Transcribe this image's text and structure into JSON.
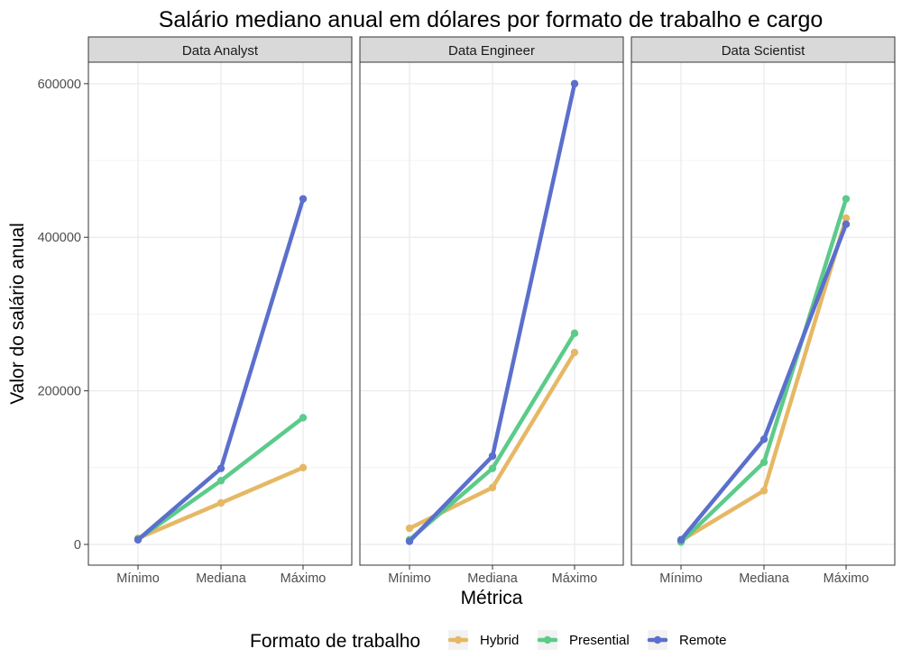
{
  "chart_data": {
    "type": "line",
    "title": "Salário mediano anual em dólares por formato de trabalho e cargo",
    "xlabel": "Métrica",
    "ylabel": "Valor do salário anual",
    "categories": [
      "Mínimo",
      "Mediana",
      "Máximo"
    ],
    "ylim": [
      -27000,
      628000
    ],
    "yticks": [
      0,
      200000,
      400000,
      600000
    ],
    "ytick_labels": [
      "0",
      "200000",
      "400000",
      "600000"
    ],
    "grid": true,
    "legend": {
      "title": "Formato de trabalho",
      "position": "bottom",
      "entries": [
        "Hybrid",
        "Presential",
        "Remote"
      ]
    },
    "colors": {
      "Hybrid": "#E6B865",
      "Presential": "#5CCB8A",
      "Remote": "#5B6FCC"
    },
    "panels": [
      {
        "name": "Data Analyst",
        "series": [
          {
            "name": "Hybrid",
            "values": [
              8000,
              54000,
              100000
            ]
          },
          {
            "name": "Presential",
            "values": [
              7000,
              83000,
              165000
            ]
          },
          {
            "name": "Remote",
            "values": [
              6000,
              99000,
              450000
            ]
          }
        ]
      },
      {
        "name": "Data Engineer",
        "series": [
          {
            "name": "Hybrid",
            "values": [
              21000,
              74000,
              250000
            ]
          },
          {
            "name": "Presential",
            "values": [
              6000,
              99000,
              275000
            ]
          },
          {
            "name": "Remote",
            "values": [
              4000,
              115000,
              600000
            ]
          }
        ]
      },
      {
        "name": "Data Scientist",
        "series": [
          {
            "name": "Hybrid",
            "values": [
              5000,
              70000,
              425000
            ]
          },
          {
            "name": "Presential",
            "values": [
              3000,
              107000,
              450000
            ]
          },
          {
            "name": "Remote",
            "values": [
              6000,
              137000,
              417000
            ]
          }
        ]
      }
    ]
  }
}
